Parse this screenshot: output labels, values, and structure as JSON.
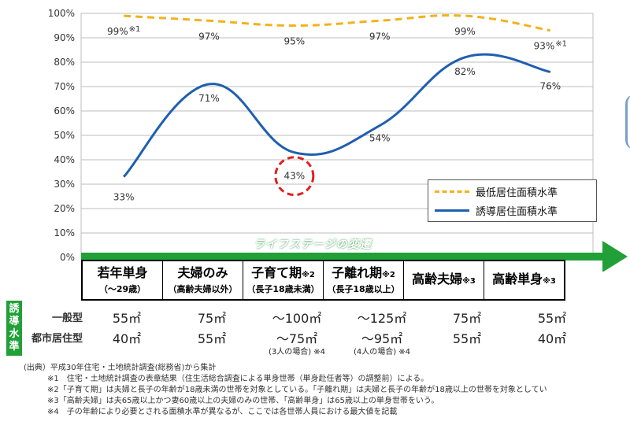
{
  "chart_data": {
    "type": "line",
    "categories": [
      "若年単身",
      "夫婦のみ",
      "子育て期",
      "子離れ期",
      "高齢夫婦",
      "高齢単身"
    ],
    "y_ticks": [
      "0%",
      "10%",
      "20%",
      "30%",
      "40%",
      "50%",
      "60%",
      "70%",
      "80%",
      "90%",
      "100%"
    ],
    "ylim": [
      0,
      100
    ],
    "grid": true,
    "legend_position": "bottom-right",
    "series": [
      {
        "name": "最低居住面積水準",
        "style": "dashed",
        "color": "#f2b21a",
        "values": [
          99,
          97,
          95,
          97,
          99,
          93
        ],
        "labels": [
          "99%",
          "97%",
          "95%",
          "97%",
          "99%",
          "93%"
        ],
        "label_marks": [
          "※1",
          "",
          "",
          "",
          "",
          "※1"
        ]
      },
      {
        "name": "誘導居住面積水準",
        "style": "solid",
        "color": "#1f5fb0",
        "values": [
          33,
          71,
          43,
          54,
          82,
          76
        ],
        "labels": [
          "33%",
          "71%",
          "43%",
          "54%",
          "82%",
          "76%"
        ],
        "highlight_index": 2,
        "highlight_color": "#e02020"
      }
    ],
    "arrow_label": "ライフステージの変遷",
    "arrow_color": "#21a038"
  },
  "stages": [
    {
      "name": "若年単身",
      "mark": "",
      "sub": "（～29歳）"
    },
    {
      "name": "夫婦のみ",
      "mark": "",
      "sub": "（高齢夫婦以外）"
    },
    {
      "name": "子育て期",
      "mark": "※2",
      "sub": "（長子18歳未満）"
    },
    {
      "name": "子離れ期",
      "mark": "※2",
      "sub": "（長子18歳以上）"
    },
    {
      "name": "高齢夫婦",
      "mark": "※3",
      "sub": ""
    },
    {
      "name": "高齢単身",
      "mark": "※3",
      "sub": ""
    }
  ],
  "sidebar_label": "誘導水準",
  "rows": {
    "general": {
      "label": "一般型",
      "values": [
        "55㎡",
        "75㎡",
        "～100㎡",
        "～125㎡",
        "75㎡",
        "55㎡"
      ]
    },
    "urban": {
      "label": "都市居住型",
      "values": [
        "40㎡",
        "55㎡",
        "～75㎡",
        "～95㎡",
        "55㎡",
        "40㎡"
      ],
      "notes": [
        "",
        "",
        "(3人の場合) ※4",
        "(4人の場合) ※4",
        "",
        ""
      ]
    }
  },
  "notes": [
    "(出典）平成30年住宅・土地統計調査(総務省)から集計",
    "※1　住宅・土地統計調査の表章結果（住生活総合調査による単身世帯（単身赴任者等）の調整前）による。",
    "※2「子育て期」は夫婦と長子の年齢が18歳未満の世帯を対象としている。「子離れ期」は夫婦と長子の年齢が18歳以上の世帯を対象としてい",
    "※3「高齢夫婦」は夫65歳以上かつ妻60歳以上の夫婦のみの世帯、「高齢単身」は65歳以上の単身世帯をいう。",
    "※4　子の年齢により必要とされる面積水準が異なるが、ここでは各世帯人員における最大値を記載"
  ]
}
